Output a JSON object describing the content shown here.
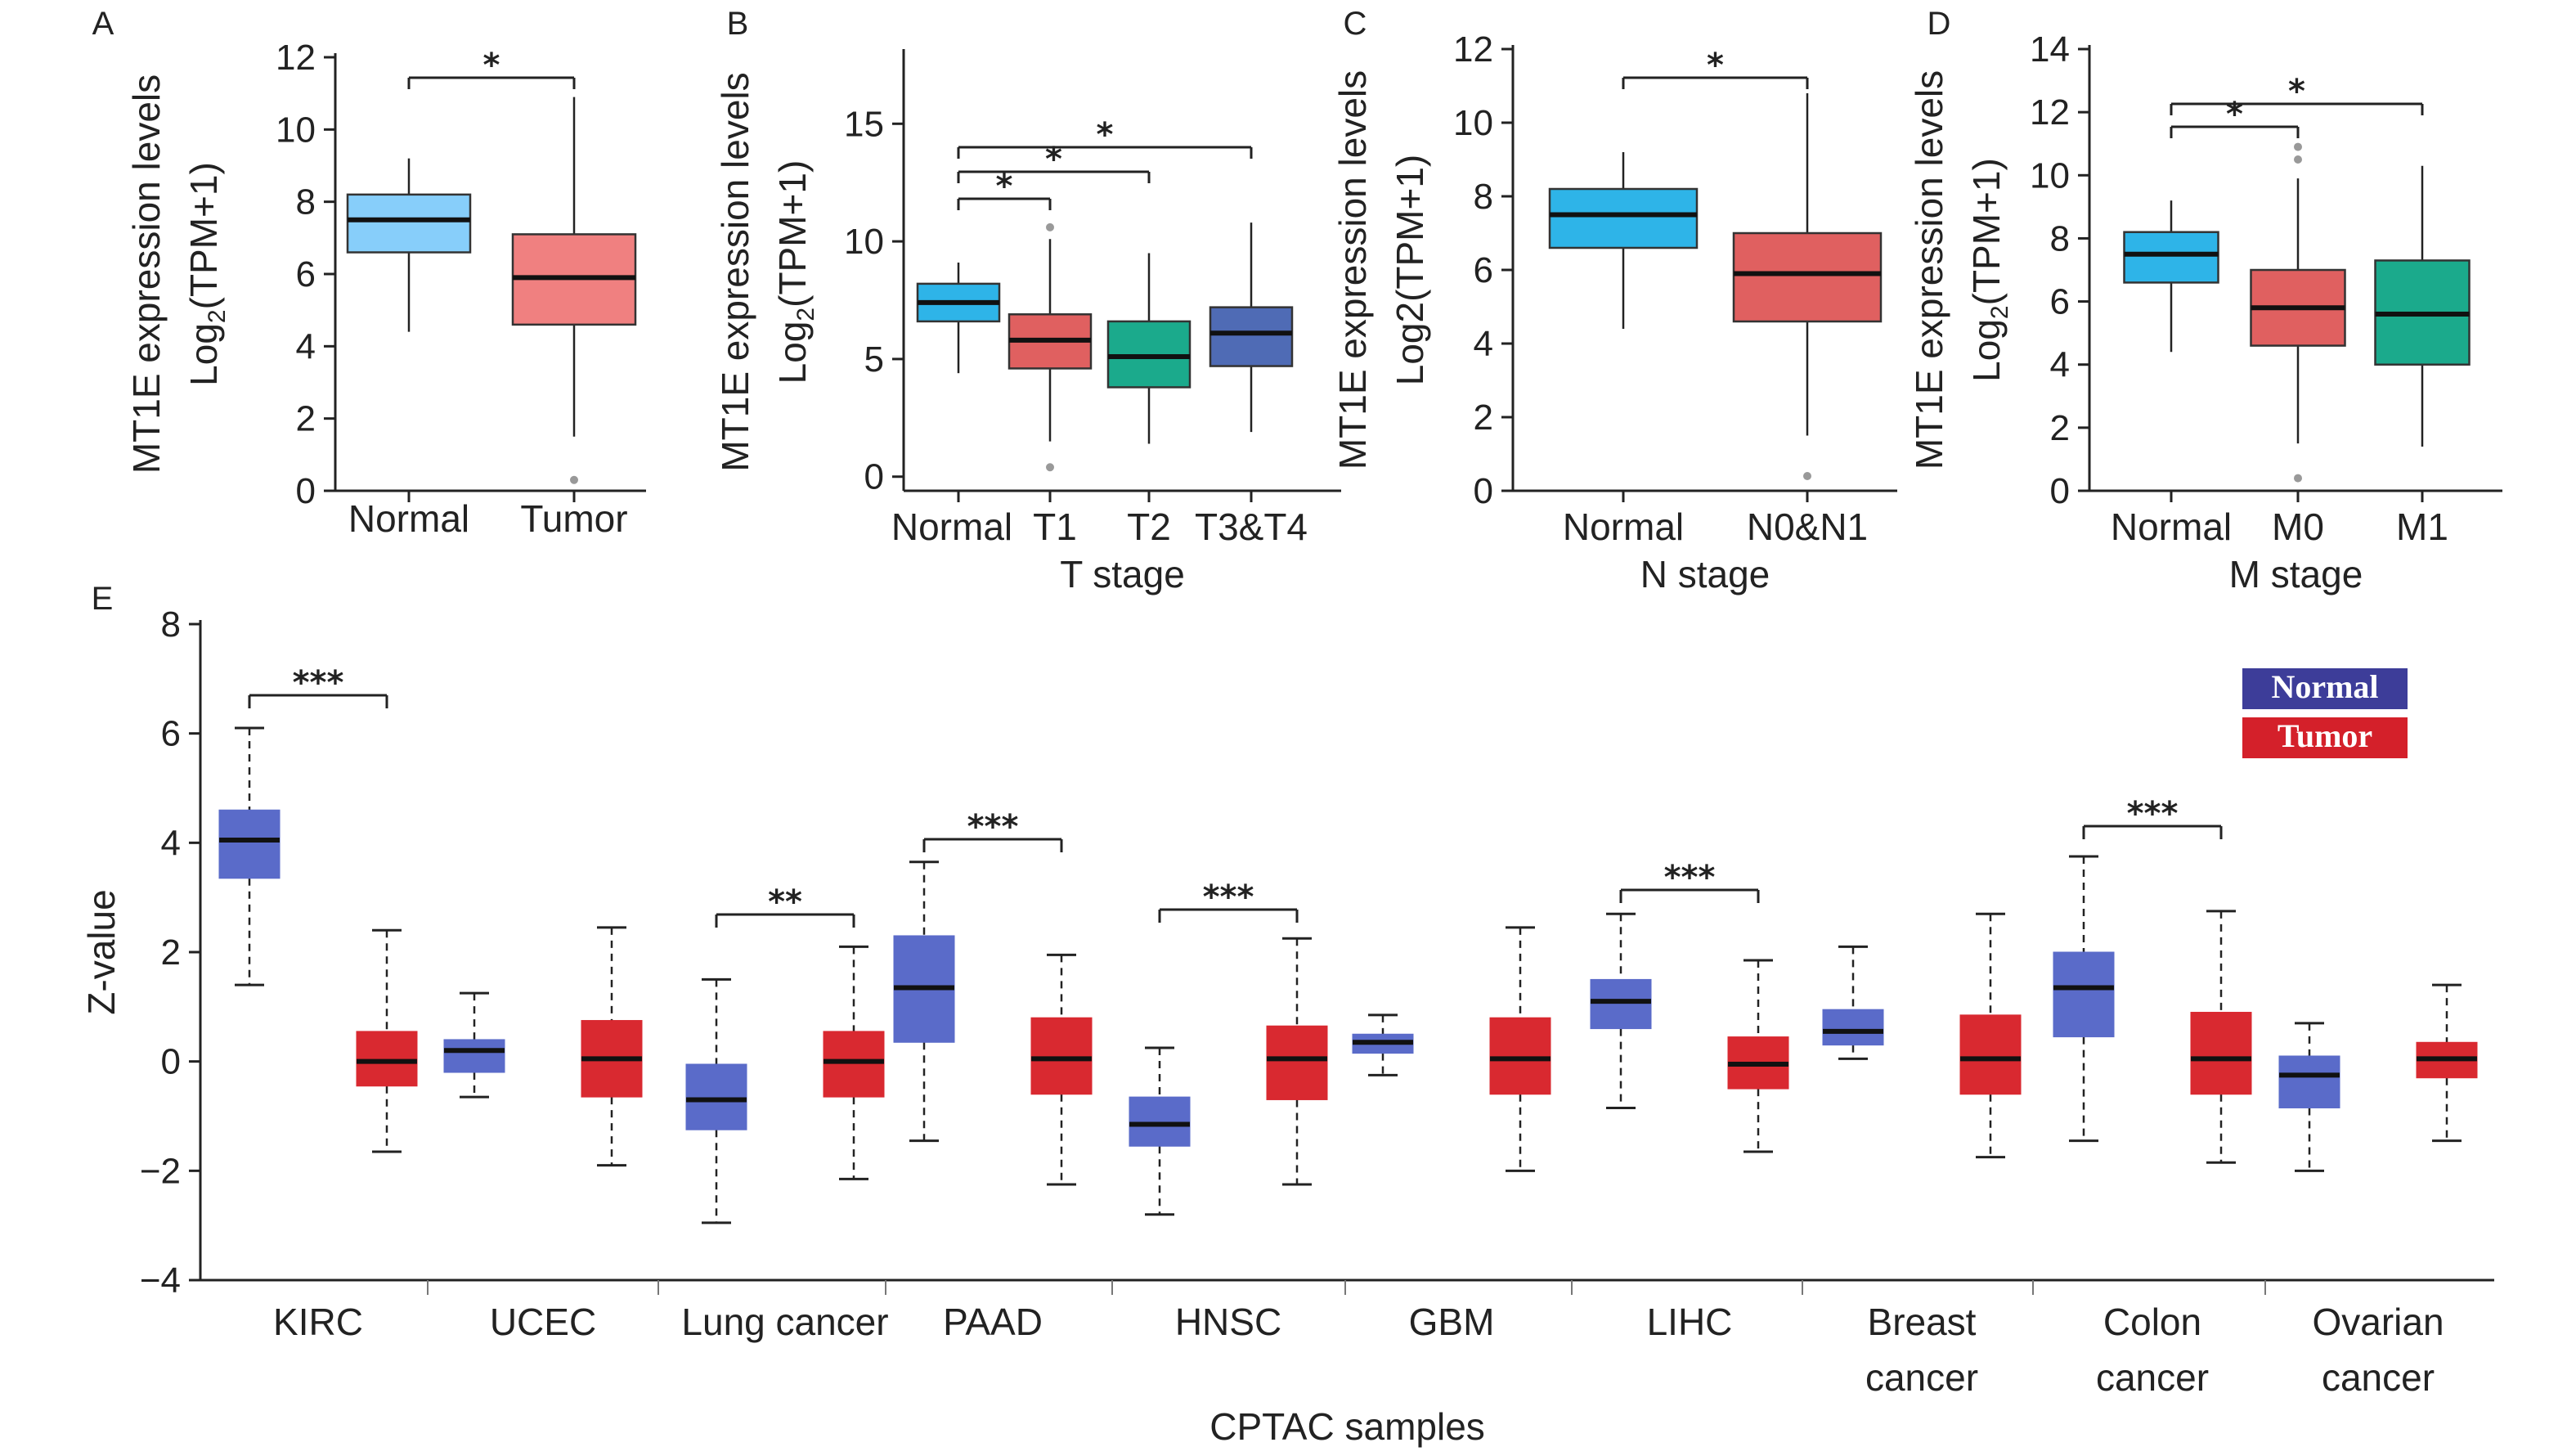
{
  "chart_data": [
    {
      "panel": "A",
      "type": "box",
      "categories": [
        "Normal",
        "Tumor"
      ],
      "ylabel": "MT1E expression levels",
      "ylabel2": "Log₂(TPM+1)",
      "xlabel": "",
      "ylim": [
        0,
        12
      ],
      "yticks": [
        0,
        2,
        4,
        6,
        8,
        10,
        12
      ],
      "boxes": [
        {
          "min": 4.4,
          "q1": 6.6,
          "median": 7.5,
          "q3": 8.2,
          "max": 9.2,
          "outliers": [],
          "color": "#87CEFA"
        },
        {
          "min": 1.5,
          "q1": 4.6,
          "median": 5.9,
          "q3": 7.1,
          "max": 10.9,
          "outliers": [
            0.3
          ],
          "color": "#F08080"
        }
      ],
      "significance": [
        {
          "from": 0,
          "to": 1,
          "label": "*"
        }
      ]
    },
    {
      "panel": "B",
      "type": "box",
      "categories": [
        "Normal",
        "T1",
        "T2",
        "T3&T4"
      ],
      "ylabel": "MT1E expression levels",
      "ylabel2": "Log₂(TPM+1)",
      "xlabel": "T stage",
      "ylim": [
        -0.6,
        18
      ],
      "yticks": [
        0,
        5,
        10,
        15
      ],
      "boxes": [
        {
          "min": 4.4,
          "q1": 6.6,
          "median": 7.4,
          "q3": 8.2,
          "max": 9.1,
          "outliers": [],
          "color": "#2EB4E8"
        },
        {
          "min": 1.5,
          "q1": 4.6,
          "median": 5.8,
          "q3": 6.9,
          "max": 10.1,
          "outliers": [
            10.6,
            0.4
          ],
          "color": "#E06060"
        },
        {
          "min": 1.4,
          "q1": 3.8,
          "median": 5.1,
          "q3": 6.6,
          "max": 9.5,
          "outliers": [],
          "color": "#1BAA8C"
        },
        {
          "min": 1.9,
          "q1": 4.7,
          "median": 6.1,
          "q3": 7.2,
          "max": 10.8,
          "outliers": [],
          "color": "#4F6BB5"
        }
      ],
      "significance": [
        {
          "from": 0,
          "to": 1,
          "label": "*"
        },
        {
          "from": 0,
          "to": 2,
          "label": "*"
        },
        {
          "from": 0,
          "to": 3,
          "label": "*"
        }
      ]
    },
    {
      "panel": "C",
      "type": "box",
      "categories": [
        "Normal",
        "N0&N1"
      ],
      "ylabel": "MT1E expression levels",
      "ylabel2": "Log2(TPM+1)",
      "xlabel": "N stage",
      "ylim": [
        0,
        12
      ],
      "yticks": [
        0,
        2,
        4,
        6,
        8,
        10,
        12
      ],
      "boxes": [
        {
          "min": 4.4,
          "q1": 6.6,
          "median": 7.5,
          "q3": 8.2,
          "max": 9.2,
          "outliers": [],
          "color": "#2EB4E8"
        },
        {
          "min": 1.5,
          "q1": 4.6,
          "median": 5.9,
          "q3": 7.0,
          "max": 10.8,
          "outliers": [
            0.4
          ],
          "color": "#E06060"
        }
      ],
      "significance": [
        {
          "from": 0,
          "to": 1,
          "label": "*"
        }
      ]
    },
    {
      "panel": "D",
      "type": "box",
      "categories": [
        "Normal",
        "M0",
        "M1"
      ],
      "ylabel": "MT1E expression levels",
      "ylabel2": "Log₂(TPM+1)",
      "xlabel": "M stage",
      "ylim": [
        0,
        14
      ],
      "yticks": [
        0,
        2,
        4,
        6,
        8,
        10,
        12,
        14
      ],
      "boxes": [
        {
          "min": 4.4,
          "q1": 6.6,
          "median": 7.5,
          "q3": 8.2,
          "max": 9.2,
          "outliers": [],
          "color": "#2EB4E8"
        },
        {
          "min": 1.5,
          "q1": 4.6,
          "median": 5.8,
          "q3": 7.0,
          "max": 9.9,
          "outliers": [
            10.9,
            10.5,
            0.4
          ],
          "color": "#E06060"
        },
        {
          "min": 1.4,
          "q1": 4.0,
          "median": 5.6,
          "q3": 7.3,
          "max": 10.3,
          "outliers": [],
          "color": "#1BAA8C"
        }
      ],
      "significance": [
        {
          "from": 0,
          "to": 1,
          "label": "*"
        },
        {
          "from": 0,
          "to": 2,
          "label": "*"
        }
      ]
    },
    {
      "panel": "E",
      "type": "box",
      "ylabel": "Z-value",
      "xlabel": "CPTAC samples",
      "ylim": [
        -4,
        8
      ],
      "yticks": [
        -4,
        -2,
        0,
        2,
        4,
        6,
        8
      ],
      "categories": [
        {
          "lines": [
            "KIRC"
          ]
        },
        {
          "lines": [
            "UCEC"
          ]
        },
        {
          "lines": [
            "Lung cancer"
          ]
        },
        {
          "lines": [
            "PAAD"
          ]
        },
        {
          "lines": [
            "HNSC"
          ]
        },
        {
          "lines": [
            "GBM"
          ]
        },
        {
          "lines": [
            "LIHC"
          ]
        },
        {
          "lines": [
            "Breast",
            "cancer"
          ]
        },
        {
          "lines": [
            "Colon",
            "cancer"
          ]
        },
        {
          "lines": [
            "Ovarian",
            "cancer"
          ]
        }
      ],
      "legend": [
        {
          "label": "Normal",
          "color": "#3D3D99"
        },
        {
          "label": "Tumor",
          "color": "#D4202A"
        }
      ],
      "normal_fill": "#5A6BC9",
      "tumor_fill": "#D92930",
      "series": [
        {
          "name": "Normal",
          "boxes": [
            {
              "min": 1.4,
              "q1": 3.35,
              "median": 4.05,
              "q3": 4.6,
              "max": 6.1
            },
            {
              "min": -0.65,
              "q1": -0.2,
              "median": 0.2,
              "q3": 0.4,
              "max": 1.25
            },
            {
              "min": -2.95,
              "q1": -1.25,
              "median": -0.7,
              "q3": -0.05,
              "max": 1.5
            },
            {
              "min": -1.45,
              "q1": 0.35,
              "median": 1.35,
              "q3": 2.3,
              "max": 3.65
            },
            {
              "min": -2.8,
              "q1": -1.55,
              "median": -1.15,
              "q3": -0.65,
              "max": 0.25
            },
            {
              "min": -0.25,
              "q1": 0.15,
              "median": 0.35,
              "q3": 0.5,
              "max": 0.85
            },
            {
              "min": -0.85,
              "q1": 0.6,
              "median": 1.1,
              "q3": 1.5,
              "max": 2.7
            },
            {
              "min": 0.05,
              "q1": 0.3,
              "median": 0.55,
              "q3": 0.95,
              "max": 2.1
            },
            {
              "min": -1.45,
              "q1": 0.45,
              "median": 1.35,
              "q3": 2.0,
              "max": 3.75
            },
            {
              "min": -2.0,
              "q1": -0.85,
              "median": -0.25,
              "q3": 0.1,
              "max": 0.7
            }
          ]
        },
        {
          "name": "Tumor",
          "boxes": [
            {
              "min": -1.65,
              "q1": -0.45,
              "median": 0.0,
              "q3": 0.55,
              "max": 2.4
            },
            {
              "min": -1.9,
              "q1": -0.65,
              "median": 0.05,
              "q3": 0.75,
              "max": 2.45
            },
            {
              "min": -2.15,
              "q1": -0.65,
              "median": 0.0,
              "q3": 0.55,
              "max": 2.1
            },
            {
              "min": -2.25,
              "q1": -0.6,
              "median": 0.05,
              "q3": 0.8,
              "max": 1.95
            },
            {
              "min": -2.25,
              "q1": -0.7,
              "median": 0.05,
              "q3": 0.65,
              "max": 2.25
            },
            {
              "min": -2.0,
              "q1": -0.6,
              "median": 0.05,
              "q3": 0.8,
              "max": 2.45
            },
            {
              "min": -1.65,
              "q1": -0.5,
              "median": -0.05,
              "q3": 0.45,
              "max": 1.85
            },
            {
              "min": -1.75,
              "q1": -0.6,
              "median": 0.05,
              "q3": 0.85,
              "max": 2.7
            },
            {
              "min": -1.85,
              "q1": -0.6,
              "median": 0.05,
              "q3": 0.9,
              "max": 2.75
            },
            {
              "min": -1.45,
              "q1": -0.3,
              "median": 0.05,
              "q3": 0.35,
              "max": 1.4
            }
          ]
        }
      ],
      "significance": [
        {
          "group": 0,
          "label": "***"
        },
        {
          "group": 2,
          "label": "**"
        },
        {
          "group": 3,
          "label": "***"
        },
        {
          "group": 4,
          "label": "***"
        },
        {
          "group": 6,
          "label": "***"
        },
        {
          "group": 8,
          "label": "***"
        }
      ]
    }
  ]
}
